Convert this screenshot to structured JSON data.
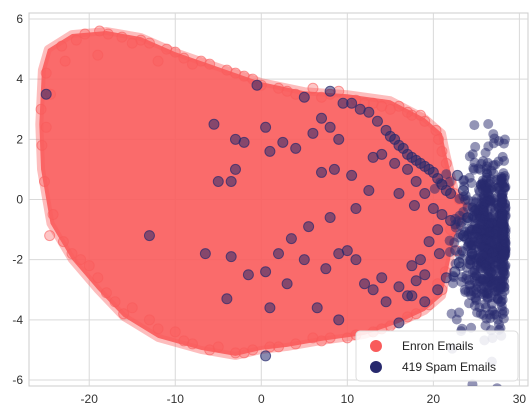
{
  "chart_data": {
    "type": "scatter",
    "title": "",
    "xlabel": "",
    "ylabel": "",
    "xlim": [
      -27,
      31
    ],
    "ylim": [
      -6.2,
      6.2
    ],
    "x_ticks": [
      -20,
      -10,
      0,
      10,
      20,
      30
    ],
    "y_ticks": [
      -6,
      -4,
      -2,
      0,
      2,
      4,
      6
    ],
    "grid": true,
    "legend_position": "bottom-right",
    "series": [
      {
        "name": "Enron Emails",
        "color": "#f95b5b",
        "marker": "circle",
        "alpha": 0.35,
        "cloud_outline": [
          [
            -25.5,
            4.3
          ],
          [
            -24.8,
            5.0
          ],
          [
            -22,
            5.5
          ],
          [
            -18,
            5.6
          ],
          [
            -14,
            5.4
          ],
          [
            -10,
            4.9
          ],
          [
            -5,
            4.4
          ],
          [
            0,
            3.9
          ],
          [
            5,
            3.6
          ],
          [
            10,
            3.5
          ],
          [
            15,
            3.3
          ],
          [
            19,
            2.7
          ],
          [
            21,
            2.2
          ],
          [
            21.5,
            1.5
          ],
          [
            22.5,
            0.3
          ],
          [
            24,
            -0.2
          ],
          [
            22.5,
            -1.2
          ],
          [
            21.8,
            -2.2
          ],
          [
            21,
            -3.2
          ],
          [
            19,
            -3.7
          ],
          [
            16,
            -4.1
          ],
          [
            12,
            -4.5
          ],
          [
            7,
            -4.7
          ],
          [
            3,
            -4.9
          ],
          [
            0,
            -5.0
          ],
          [
            -3,
            -5.2
          ],
          [
            -7,
            -5.0
          ],
          [
            -12,
            -4.6
          ],
          [
            -16,
            -3.9
          ],
          [
            -19,
            -3.0
          ],
          [
            -22,
            -2.0
          ],
          [
            -24.5,
            -0.8
          ],
          [
            -25.6,
            1.0
          ],
          [
            -25.8,
            2.5
          ]
        ],
        "values": [
          [
            -24.5,
            3.5
          ],
          [
            -22.8,
            4.6
          ],
          [
            -19,
            4.8
          ],
          [
            -15,
            5.2
          ],
          [
            -12,
            4.6
          ],
          [
            -8,
            4.5
          ],
          [
            -3,
            4.2
          ],
          [
            -0.5,
            3.8
          ],
          [
            2,
            3.7
          ],
          [
            4,
            3.5
          ],
          [
            7,
            3.4
          ],
          [
            9,
            3.6
          ],
          [
            11,
            3.3
          ],
          [
            13,
            3.2
          ],
          [
            15,
            3.0
          ],
          [
            17,
            2.9
          ],
          [
            19,
            2.6
          ],
          [
            20.3,
            2.3
          ],
          [
            21,
            1.6
          ],
          [
            22,
            0.6
          ],
          [
            23,
            0.0
          ],
          [
            22,
            -1.0
          ],
          [
            21.4,
            -2.4
          ],
          [
            21,
            -3.0
          ],
          [
            19.5,
            -3.5
          ],
          [
            17,
            -3.9
          ],
          [
            15,
            -4.2
          ],
          [
            13,
            -4.4
          ],
          [
            10,
            -4.6
          ],
          [
            8,
            -4.6
          ],
          [
            6,
            -4.6
          ],
          [
            4,
            -4.8
          ],
          [
            1,
            -4.9
          ],
          [
            -1,
            -5.0
          ],
          [
            -3,
            -5.1
          ],
          [
            -5,
            -4.9
          ],
          [
            -8,
            -4.8
          ],
          [
            -10,
            -4.4
          ],
          [
            -12,
            -4.3
          ],
          [
            -15,
            -3.6
          ],
          [
            -17,
            -3.4
          ],
          [
            -19,
            -2.6
          ],
          [
            -21,
            -2.0
          ],
          [
            -23,
            -1.4
          ],
          [
            -24.6,
            -1.2
          ],
          [
            -25.2,
            0.6
          ],
          [
            -25.5,
            1.8
          ],
          [
            -25.6,
            3.0
          ],
          [
            -25,
            4.2
          ],
          [
            -23.2,
            5.1
          ],
          [
            -20.5,
            5.5
          ],
          [
            -17.8,
            5.5
          ],
          [
            -16.2,
            5.4
          ],
          [
            -14,
            5.3
          ],
          [
            -11,
            5.0
          ],
          [
            -9,
            4.7
          ],
          [
            -7,
            4.6
          ],
          [
            -4,
            4.3
          ],
          [
            -1,
            4.0
          ],
          [
            6,
            3.7
          ],
          [
            12,
            3.2
          ],
          [
            16,
            3.1
          ],
          [
            18.5,
            2.8
          ],
          [
            20.6,
            2.0
          ],
          [
            21.5,
            1.2
          ],
          [
            22.4,
            0.2
          ],
          [
            23.5,
            -0.5
          ],
          [
            22.7,
            -1.7
          ],
          [
            20.5,
            -2.8
          ],
          [
            18,
            -3.8
          ],
          [
            14,
            -4.3
          ],
          [
            11,
            -4.5
          ],
          [
            7,
            -4.7
          ],
          [
            2,
            -4.9
          ],
          [
            -2,
            -5.1
          ],
          [
            -6,
            -5.0
          ],
          [
            -9,
            -4.7
          ],
          [
            -13,
            -4.0
          ],
          [
            -16,
            -3.8
          ],
          [
            -18,
            -3.1
          ],
          [
            -20,
            -2.2
          ],
          [
            -22,
            -1.8
          ],
          [
            -24.2,
            -0.5
          ],
          [
            -25,
            2.4
          ],
          [
            -21.5,
            5.3
          ],
          [
            -18.8,
            5.6
          ],
          [
            -13,
            5.2
          ],
          [
            -10,
            4.9
          ],
          [
            -6,
            4.5
          ],
          [
            -2,
            4.1
          ],
          [
            0,
            3.8
          ],
          [
            3,
            3.6
          ],
          [
            8,
            3.5
          ],
          [
            14,
            3.1
          ],
          [
            17.5,
            2.8
          ]
        ]
      },
      {
        "name": "419 Spam Emails",
        "color": "#27296d",
        "marker": "circle",
        "alpha": 0.55,
        "cluster": {
          "center": [
            26.5,
            -1.4
          ],
          "spread": [
            1.9,
            1.4
          ],
          "count": 650
        },
        "values": [
          [
            5,
            3.4
          ],
          [
            8,
            3.6
          ],
          [
            9.5,
            3.2
          ],
          [
            10.5,
            3.2
          ],
          [
            11.5,
            3.0
          ],
          [
            12.5,
            2.9
          ],
          [
            13.5,
            2.6
          ],
          [
            14.5,
            2.3
          ],
          [
            15,
            2.1
          ],
          [
            15.5,
            2.0
          ],
          [
            16,
            1.8
          ],
          [
            16.5,
            1.7
          ],
          [
            17,
            1.5
          ],
          [
            17.5,
            1.4
          ],
          [
            18,
            1.3
          ],
          [
            18.5,
            1.2
          ],
          [
            19,
            1.1
          ],
          [
            19.5,
            1.0
          ],
          [
            20,
            0.9
          ],
          [
            20.5,
            0.7
          ],
          [
            21,
            0.5
          ],
          [
            21.5,
            0.3
          ],
          [
            22,
            0.2
          ],
          [
            14,
            1.5
          ],
          [
            13,
            1.4
          ],
          [
            15.5,
            1.2
          ],
          [
            17,
            1.0
          ],
          [
            18,
            0.6
          ],
          [
            19,
            0.2
          ],
          [
            16,
            0.2
          ],
          [
            17.8,
            -0.2
          ],
          [
            20,
            -0.3
          ],
          [
            21,
            -0.5
          ],
          [
            22,
            -0.7
          ],
          [
            20.5,
            -1.0
          ],
          [
            19.5,
            -1.4
          ],
          [
            20.7,
            -1.8
          ],
          [
            18.5,
            -2.0
          ],
          [
            17.5,
            -2.2
          ],
          [
            19,
            -2.5
          ],
          [
            18,
            -2.7
          ],
          [
            17,
            -3.2
          ],
          [
            14.5,
            -3.4
          ],
          [
            13,
            -3.0
          ],
          [
            12,
            -2.8
          ],
          [
            11,
            -2.0
          ],
          [
            10,
            -1.7
          ],
          [
            9,
            -1.8
          ],
          [
            7.5,
            -2.3
          ],
          [
            5,
            -2.0
          ],
          [
            3.5,
            -1.3
          ],
          [
            2,
            -1.8
          ],
          [
            0.5,
            -2.4
          ],
          [
            -3.5,
            -1.9
          ],
          [
            -6.5,
            -1.8
          ],
          [
            -13,
            -1.2
          ],
          [
            -25,
            3.5
          ],
          [
            -5.5,
            2.5
          ],
          [
            -3,
            2.0
          ],
          [
            -2,
            1.9
          ],
          [
            1,
            1.6
          ],
          [
            0.5,
            2.4
          ],
          [
            2.5,
            1.9
          ],
          [
            4,
            1.7
          ],
          [
            6,
            2.2
          ],
          [
            7,
            2.7
          ],
          [
            8,
            2.4
          ],
          [
            9,
            2.0
          ],
          [
            8.5,
            1.0
          ],
          [
            7,
            0.9
          ],
          [
            10.5,
            0.8
          ],
          [
            12.5,
            0.3
          ],
          [
            11,
            -0.3
          ],
          [
            8,
            -0.6
          ],
          [
            5.5,
            -0.9
          ],
          [
            -3,
            1.0
          ],
          [
            -5,
            0.6
          ],
          [
            -3.5,
            0.6
          ],
          [
            1,
            -3.6
          ],
          [
            0.5,
            -5.2
          ],
          [
            16,
            -4.1
          ],
          [
            17.5,
            -3.2
          ],
          [
            14,
            -2.6
          ],
          [
            16,
            -2.9
          ],
          [
            19,
            -3.4
          ],
          [
            20.5,
            -3.0
          ],
          [
            21.5,
            -2.6
          ],
          [
            22.5,
            -2.4
          ],
          [
            23,
            -2.1
          ],
          [
            23.5,
            -1.2
          ],
          [
            24,
            -0.6
          ],
          [
            23.5,
            0.3
          ],
          [
            22.8,
            0.8
          ],
          [
            24.5,
            -1.8
          ],
          [
            9,
            -4.0
          ],
          [
            -0.5,
            3.8
          ],
          [
            -1.5,
            -2.5
          ],
          [
            -4,
            -3.3
          ],
          [
            3,
            -2.8
          ],
          [
            6.5,
            -3.6
          ]
        ]
      }
    ]
  }
}
